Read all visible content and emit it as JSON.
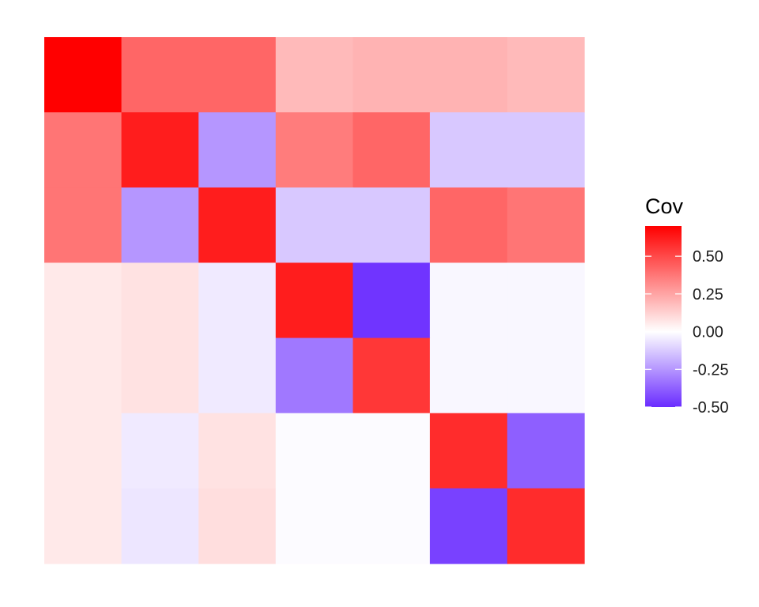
{
  "chart_data": {
    "type": "heatmap",
    "title": "",
    "xlabel": "",
    "ylabel": "",
    "rows": 7,
    "cols": 7,
    "values": [
      [
        0.7,
        0.42,
        0.42,
        0.19,
        0.21,
        0.21,
        0.19
      ],
      [
        0.38,
        0.62,
        -0.25,
        0.36,
        0.42,
        -0.13,
        -0.13
      ],
      [
        0.38,
        -0.25,
        0.62,
        -0.13,
        -0.13,
        0.42,
        0.38
      ],
      [
        0.06,
        0.08,
        -0.05,
        0.62,
        -0.48,
        -0.02,
        -0.02
      ],
      [
        0.06,
        0.08,
        -0.05,
        -0.32,
        0.55,
        -0.02,
        -0.02
      ],
      [
        0.06,
        -0.05,
        0.08,
        -0.01,
        -0.01,
        0.58,
        -0.38
      ],
      [
        0.06,
        -0.06,
        0.09,
        -0.01,
        -0.01,
        -0.45,
        0.58
      ]
    ],
    "legend": {
      "title": "Cov",
      "ticks": [
        0.5,
        0.25,
        0.0,
        -0.25,
        -0.5
      ],
      "tick_labels": [
        "0.50",
        "0.25",
        "0.00",
        "-0.25",
        "-0.50"
      ],
      "range": [
        -0.5,
        0.7
      ],
      "placement": "right"
    },
    "colors": {
      "low": "#6a2cff",
      "mid": "#ffffff",
      "high": "#ff0000"
    },
    "grid": false
  }
}
